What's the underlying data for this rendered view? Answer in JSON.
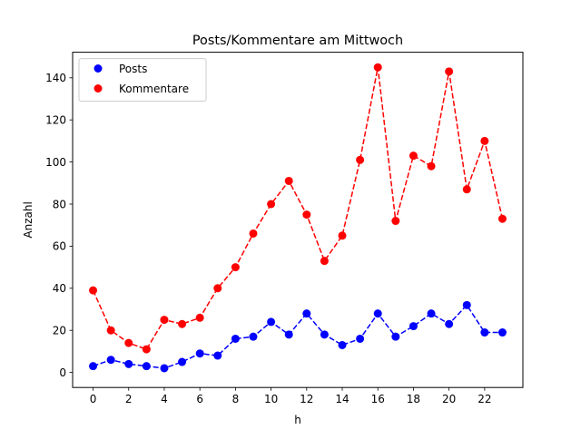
{
  "chart_data": {
    "type": "line",
    "title": "Posts/Kommentare am Mittwoch",
    "xlabel": "h",
    "ylabel": "Anzahl",
    "x": [
      0,
      1,
      2,
      3,
      4,
      5,
      6,
      7,
      8,
      9,
      10,
      11,
      12,
      13,
      14,
      15,
      16,
      17,
      18,
      19,
      20,
      21,
      22,
      23
    ],
    "xticks": [
      0,
      2,
      4,
      6,
      8,
      10,
      12,
      14,
      16,
      18,
      20,
      22
    ],
    "yticks": [
      0,
      20,
      40,
      60,
      80,
      100,
      120,
      140
    ],
    "xlim": [
      -1.15,
      24.15
    ],
    "ylim": [
      -7.15,
      152.15
    ],
    "grid": false,
    "legend_position": "top-left",
    "series": [
      {
        "name": "Posts",
        "color": "#0000ff",
        "line_style": "dashed",
        "marker": "circle",
        "values": [
          3,
          6,
          4,
          3,
          2,
          5,
          9,
          8,
          16,
          17,
          24,
          18,
          28,
          18,
          13,
          16,
          28,
          17,
          22,
          28,
          23,
          32,
          19,
          19
        ]
      },
      {
        "name": "Kommentare",
        "color": "#ff0000",
        "line_style": "dashed",
        "marker": "circle",
        "values": [
          39,
          20,
          14,
          11,
          25,
          23,
          26,
          40,
          50,
          66,
          80,
          91,
          75,
          53,
          65,
          101,
          145,
          72,
          103,
          98,
          143,
          87,
          110,
          73
        ]
      }
    ]
  }
}
